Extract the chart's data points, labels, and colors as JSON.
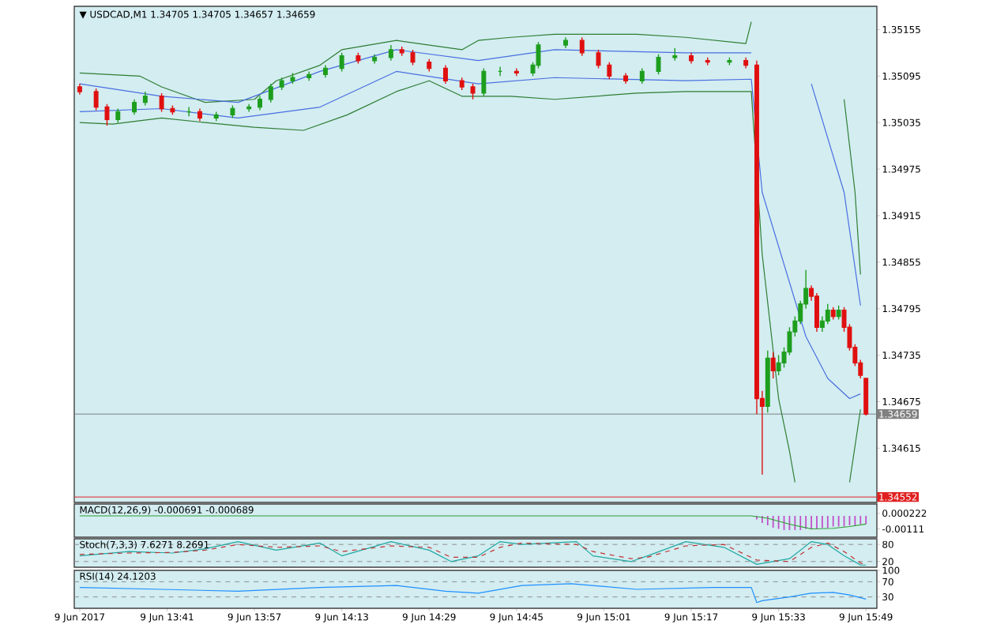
{
  "chart_data": [
    {
      "type": "candlestick",
      "title": "▼ USDCAD,M1  1.34705 1.34705 1.34657 1.34659",
      "x": [
        "2017-06-09T13:25",
        "2017-06-09T13:28",
        "2017-06-09T13:30",
        "2017-06-09T13:32",
        "2017-06-09T13:35",
        "2017-06-09T13:37",
        "2017-06-09T13:40",
        "2017-06-09T13:42",
        "2017-06-09T13:45",
        "2017-06-09T13:47",
        "2017-06-09T13:50",
        "2017-06-09T13:53",
        "2017-06-09T13:56",
        "2017-06-09T13:58",
        "2017-06-09T14:00",
        "2017-06-09T14:02",
        "2017-06-09T14:04",
        "2017-06-09T14:07",
        "2017-06-09T14:10",
        "2017-06-09T14:13",
        "2017-06-09T14:16",
        "2017-06-09T14:19",
        "2017-06-09T14:22",
        "2017-06-09T14:24",
        "2017-06-09T14:26",
        "2017-06-09T14:29",
        "2017-06-09T14:32",
        "2017-06-09T14:35",
        "2017-06-09T14:37",
        "2017-06-09T14:39",
        "2017-06-09T14:42",
        "2017-06-09T14:45",
        "2017-06-09T14:48",
        "2017-06-09T14:49",
        "2017-06-09T14:54",
        "2017-06-09T14:57",
        "2017-06-09T15:00",
        "2017-06-09T15:02",
        "2017-06-09T15:05",
        "2017-06-09T15:08",
        "2017-06-09T15:11",
        "2017-06-09T15:14",
        "2017-06-09T15:17",
        "2017-06-09T15:20",
        "2017-06-09T15:24",
        "2017-06-09T15:27",
        "2017-06-09T15:29",
        "2017-06-09T15:30",
        "2017-06-09T15:31",
        "2017-06-09T15:32",
        "2017-06-09T15:33",
        "2017-06-09T15:34",
        "2017-06-09T15:35",
        "2017-06-09T15:36",
        "2017-06-09T15:37",
        "2017-06-09T15:38",
        "2017-06-09T15:39",
        "2017-06-09T15:40",
        "2017-06-09T15:41",
        "2017-06-09T15:42",
        "2017-06-09T15:43",
        "2017-06-09T15:44",
        "2017-06-09T15:45",
        "2017-06-09T15:46",
        "2017-06-09T15:47",
        "2017-06-09T15:48",
        "2017-06-09T15:49"
      ],
      "ohlc": [
        [
          1.35081,
          1.35085,
          1.35071,
          1.35075
        ],
        [
          1.35075,
          1.35079,
          1.35051,
          1.35055
        ],
        [
          1.35055,
          1.35059,
          1.35031,
          1.35039
        ],
        [
          1.35039,
          1.35053,
          1.35035,
          1.35049
        ],
        [
          1.35049,
          1.35065,
          1.35045,
          1.35061
        ],
        [
          1.35061,
          1.35075,
          1.35057,
          1.35069
        ],
        [
          1.35069,
          1.35073,
          1.35049,
          1.35053
        ],
        [
          1.35053,
          1.35057,
          1.35045,
          1.35049
        ],
        [
          1.35049,
          1.35055,
          1.35043,
          1.35049
        ],
        [
          1.35049,
          1.35053,
          1.35037,
          1.35041
        ],
        [
          1.35041,
          1.35049,
          1.35037,
          1.35045
        ],
        [
          1.35045,
          1.35057,
          1.35041,
          1.35053
        ],
        [
          1.35053,
          1.35059,
          1.35049,
          1.35055
        ],
        [
          1.35055,
          1.35069,
          1.35051,
          1.35065
        ],
        [
          1.35065,
          1.35085,
          1.35061,
          1.35081
        ],
        [
          1.35081,
          1.35093,
          1.35077,
          1.35089
        ],
        [
          1.35089,
          1.35099,
          1.35085,
          1.35093
        ],
        [
          1.35093,
          1.35101,
          1.35089,
          1.35097
        ],
        [
          1.35097,
          1.35109,
          1.35093,
          1.35105
        ],
        [
          1.35105,
          1.35125,
          1.35101,
          1.35121
        ],
        [
          1.35121,
          1.35125,
          1.35111,
          1.35115
        ],
        [
          1.35115,
          1.35123,
          1.35111,
          1.35119
        ],
        [
          1.35119,
          1.35135,
          1.35115,
          1.35129
        ],
        [
          1.35129,
          1.35133,
          1.35121,
          1.35125
        ],
        [
          1.35125,
          1.35129,
          1.35109,
          1.35113
        ],
        [
          1.35113,
          1.35117,
          1.35101,
          1.35105
        ],
        [
          1.35105,
          1.35109,
          1.35085,
          1.35089
        ],
        [
          1.35089,
          1.35093,
          1.35077,
          1.35081
        ],
        [
          1.35081,
          1.35085,
          1.35065,
          1.35073
        ],
        [
          1.35073,
          1.35105,
          1.35069,
          1.35101
        ],
        [
          1.35101,
          1.35107,
          1.35095,
          1.35101
        ],
        [
          1.35101,
          1.35105,
          1.35095,
          1.35099
        ],
        [
          1.35099,
          1.35113,
          1.35095,
          1.35109
        ],
        [
          1.35109,
          1.35139,
          1.35105,
          1.35135
        ],
        [
          1.35135,
          1.35145,
          1.35131,
          1.35141
        ],
        [
          1.35141,
          1.35145,
          1.35121,
          1.35125
        ],
        [
          1.35125,
          1.35129,
          1.35105,
          1.35109
        ],
        [
          1.35109,
          1.35113,
          1.35091,
          1.35095
        ],
        [
          1.35095,
          1.35099,
          1.35085,
          1.35089
        ],
        [
          1.35089,
          1.35105,
          1.35085,
          1.35101
        ],
        [
          1.35101,
          1.35123,
          1.35097,
          1.35119
        ],
        [
          1.35119,
          1.35131,
          1.35115,
          1.35121
        ],
        [
          1.35121,
          1.35125,
          1.35111,
          1.35115
        ],
        [
          1.35115,
          1.35119,
          1.35109,
          1.35113
        ],
        [
          1.35113,
          1.35119,
          1.35109,
          1.35115
        ],
        [
          1.35115,
          1.35119,
          1.35105,
          1.35109
        ],
        [
          1.35109,
          1.35115,
          1.34659,
          1.34679
        ],
        [
          1.34679,
          1.34689,
          1.34581,
          1.34669
        ],
        [
          1.34669,
          1.34741,
          1.34661,
          1.34731
        ],
        [
          1.34731,
          1.34739,
          1.34705,
          1.34715
        ],
        [
          1.34715,
          1.34735,
          1.34709,
          1.34725
        ],
        [
          1.34725,
          1.34745,
          1.34719,
          1.34739
        ],
        [
          1.34739,
          1.34771,
          1.34735,
          1.34765
        ],
        [
          1.34765,
          1.34785,
          1.34759,
          1.34779
        ],
        [
          1.34779,
          1.34805,
          1.34775,
          1.34801
        ],
        [
          1.34801,
          1.34845,
          1.34795,
          1.34821
        ],
        [
          1.34821,
          1.34825,
          1.34805,
          1.34811
        ],
        [
          1.34811,
          1.34815,
          1.34765,
          1.34771
        ],
        [
          1.34771,
          1.34785,
          1.34765,
          1.34779
        ],
        [
          1.34779,
          1.34801,
          1.34775,
          1.34793
        ],
        [
          1.34793,
          1.34797,
          1.34781,
          1.34785
        ],
        [
          1.34785,
          1.34799,
          1.34781,
          1.34793
        ],
        [
          1.34793,
          1.34797,
          1.34765,
          1.34771
        ],
        [
          1.34771,
          1.34775,
          1.34741,
          1.34745
        ],
        [
          1.34745,
          1.34749,
          1.34721,
          1.34725
        ],
        [
          1.34725,
          1.34729,
          1.34705,
          1.34709
        ],
        [
          1.34705,
          1.34705,
          1.34657,
          1.34659
        ]
      ],
      "series": [
        {
          "type": "line",
          "color": "#2e7d32",
          "x": [
            "2017-06-09T13:25",
            "2017-06-09T13:36",
            "2017-06-09T13:40",
            "2017-06-09T13:48",
            "2017-06-09T13:57",
            "2017-06-09T14:01",
            "2017-06-09T14:09",
            "2017-06-09T14:13",
            "2017-06-09T14:23",
            "2017-06-09T14:35",
            "2017-06-09T14:38",
            "2017-06-09T14:44",
            "2017-06-09T14:52",
            "2017-06-09T15:07",
            "2017-06-09T15:16",
            "2017-06-09T15:27",
            "2017-06-09T15:28",
            "2017-06-09T15:29",
            "2017-06-09T15:42",
            "2017-06-09T15:45",
            "2017-06-09T15:47",
            "2017-06-09T15:48"
          ],
          "values": [
            1.35099,
            1.35095,
            1.35081,
            1.35061,
            1.35065,
            1.35089,
            1.35109,
            1.35129,
            1.35141,
            1.35129,
            1.35141,
            1.35145,
            1.35149,
            1.35149,
            1.35145,
            1.35137,
            1.35165,
            null,
            null,
            1.35065,
            1.34945,
            1.34839
          ]
        },
        {
          "type": "line",
          "color": "#2e7d32",
          "x": [
            "2017-06-09T13:25",
            "2017-06-09T13:31",
            "2017-06-09T13:40",
            "2017-06-09T13:48",
            "2017-06-09T13:57",
            "2017-06-09T14:06",
            "2017-06-09T14:14",
            "2017-06-09T14:23",
            "2017-06-09T14:29",
            "2017-06-09T14:35",
            "2017-06-09T14:44",
            "2017-06-09T14:52",
            "2017-06-09T15:07",
            "2017-06-09T15:16",
            "2017-06-09T15:28",
            "2017-06-09T15:30",
            "2017-06-09T15:33",
            "2017-06-09T15:35",
            "2017-06-09T15:36",
            "2017-06-09T15:37",
            "2017-06-09T15:46",
            "2017-06-09T15:48"
          ],
          "values": [
            1.35035,
            1.35033,
            1.35041,
            1.35035,
            1.35029,
            1.35025,
            1.35045,
            1.35075,
            1.35089,
            1.35069,
            1.35069,
            1.35065,
            1.35073,
            1.35075,
            1.35075,
            1.34865,
            1.34679,
            1.34611,
            1.34571,
            null,
            1.34571,
            1.34665
          ]
        },
        {
          "type": "line",
          "color": "#4a6ee0",
          "x": [
            "2017-06-09T13:25",
            "2017-06-09T13:40",
            "2017-06-09T13:54",
            "2017-06-09T14:09",
            "2017-06-09T14:23",
            "2017-06-09T14:38",
            "2017-06-09T14:52",
            "2017-06-09T15:16",
            "2017-06-09T15:28",
            "2017-06-09T15:29",
            "2017-06-09T15:30",
            "2017-06-09T15:34",
            "2017-06-09T15:39",
            "2017-06-09T15:45",
            "2017-06-09T15:48"
          ],
          "values": [
            1.35085,
            1.35069,
            1.35061,
            1.35101,
            1.35129,
            1.35115,
            1.35129,
            1.35125,
            1.35125,
            null,
            null,
            null,
            1.35085,
            1.34945,
            1.34799
          ]
        },
        {
          "type": "line",
          "color": "#4a6ee0",
          "x": [
            "2017-06-09T13:25",
            "2017-06-09T13:40",
            "2017-06-09T13:54",
            "2017-06-09T14:09",
            "2017-06-09T14:23",
            "2017-06-09T14:38",
            "2017-06-09T14:52",
            "2017-06-09T15:16",
            "2017-06-09T15:28",
            "2017-06-09T15:30",
            "2017-06-09T15:38",
            "2017-06-09T15:42",
            "2017-06-09T15:46",
            "2017-06-09T15:48"
          ],
          "values": [
            1.35049,
            1.35053,
            1.35041,
            1.35055,
            1.35101,
            1.35085,
            1.35093,
            1.35089,
            1.35091,
            1.34945,
            1.34759,
            1.34705,
            1.34679,
            1.34685
          ]
        }
      ],
      "xlim": [
        "2017-06-09T13:24",
        "2017-06-09T15:51"
      ],
      "ylim": [
        1.34545,
        1.35185
      ],
      "yticks": [
        1.34615,
        1.34675,
        1.34735,
        1.34795,
        1.34855,
        1.34915,
        1.34975,
        1.35035,
        1.35095,
        1.35155
      ],
      "tick_labels": "y",
      "ref_lines": [
        {
          "axis": "y",
          "value": 1.34659,
          "label": "1.34659",
          "color": "#808080"
        },
        {
          "axis": "y",
          "value": 1.34552,
          "label": "1.34552",
          "color": "#e02020"
        }
      ]
    },
    {
      "type": "bar",
      "title": "MACD(12,26,9) -0.000691 -0.000689",
      "series": [
        {
          "type": "bar",
          "color": "#c050c8",
          "x": [
            "2017-06-09T15:29",
            "2017-06-09T15:30",
            "2017-06-09T15:31",
            "2017-06-09T15:32",
            "2017-06-09T15:33",
            "2017-06-09T15:34",
            "2017-06-09T15:35",
            "2017-06-09T15:36",
            "2017-06-09T15:37",
            "2017-06-09T15:38",
            "2017-06-09T15:39",
            "2017-06-09T15:40",
            "2017-06-09T15:41",
            "2017-06-09T15:42",
            "2017-06-09T15:43",
            "2017-06-09T15:44",
            "2017-06-09T15:45",
            "2017-06-09T15:46",
            "2017-06-09T15:47",
            "2017-06-09T15:48",
            "2017-06-09T15:49"
          ],
          "values": [
            -0.0003,
            -0.0006,
            -0.0008,
            -0.001,
            -0.0011,
            -0.0012,
            -0.0012,
            -0.0012,
            -0.0012,
            -0.0011,
            -0.0011,
            -0.0011,
            -0.001,
            -0.001,
            -0.0009,
            -0.0009,
            -0.0009,
            -0.0008,
            -0.0008,
            -0.0007,
            -0.000691
          ]
        },
        {
          "type": "line",
          "color": "#2e9d32",
          "x": [
            "2017-06-09T13:25",
            "2017-06-09T14:25",
            "2017-06-09T15:28",
            "2017-06-09T15:31",
            "2017-06-09T15:35",
            "2017-06-09T15:39",
            "2017-06-09T15:43",
            "2017-06-09T15:46",
            "2017-06-09T15:49"
          ],
          "values": [
            0,
            0,
            0,
            -0.0002,
            -0.0007,
            -0.0011,
            -0.00105,
            -0.0009,
            -0.000689
          ]
        }
      ],
      "xlim": [
        "2017-06-09T13:24",
        "2017-06-09T15:51"
      ],
      "ylim": [
        -0.0018,
        0.001
      ],
      "yticks": [
        -0.00111,
        0.000222
      ],
      "tick_labels": "y"
    },
    {
      "type": "line",
      "title": "Stoch(7,3,3) 7.6271 8.2691",
      "series": [
        {
          "color": "#20a8a0",
          "x": [
            "2017-06-09T13:25",
            "2017-06-09T13:34",
            "2017-06-09T13:42",
            "2017-06-09T13:48",
            "2017-06-09T13:54",
            "2017-06-09T14:01",
            "2017-06-09T14:09",
            "2017-06-09T14:13",
            "2017-06-09T14:22",
            "2017-06-09T14:29",
            "2017-06-09T14:33",
            "2017-06-09T14:38",
            "2017-06-09T14:42",
            "2017-06-09T14:46",
            "2017-06-09T14:56",
            "2017-06-09T14:59",
            "2017-06-09T15:06",
            "2017-06-09T15:09",
            "2017-06-09T15:16",
            "2017-06-09T15:23",
            "2017-06-09T15:29",
            "2017-06-09T15:35",
            "2017-06-09T15:39",
            "2017-06-09T15:42",
            "2017-06-09T15:45",
            "2017-06-09T15:48",
            "2017-06-09T15:49"
          ],
          "values": [
            40,
            55,
            50,
            65,
            90,
            60,
            85,
            40,
            90,
            60,
            20,
            40,
            90,
            80,
            90,
            40,
            20,
            40,
            90,
            70,
            10,
            30,
            90,
            80,
            40,
            8,
            7.6271
          ]
        },
        {
          "color": "#c03030",
          "line_style": "dashed",
          "x": [
            "2017-06-09T13:25",
            "2017-06-09T13:34",
            "2017-06-09T13:42",
            "2017-06-09T13:48",
            "2017-06-09T13:54",
            "2017-06-09T14:01",
            "2017-06-09T14:09",
            "2017-06-09T14:13",
            "2017-06-09T14:22",
            "2017-06-09T14:29",
            "2017-06-09T14:33",
            "2017-06-09T14:38",
            "2017-06-09T14:42",
            "2017-06-09T14:46",
            "2017-06-09T14:56",
            "2017-06-09T14:59",
            "2017-06-09T15:06",
            "2017-06-09T15:09",
            "2017-06-09T15:16",
            "2017-06-09T15:23",
            "2017-06-09T15:29",
            "2017-06-09T15:35",
            "2017-06-09T15:39",
            "2017-06-09T15:42",
            "2017-06-09T15:45",
            "2017-06-09T15:48",
            "2017-06-09T15:49"
          ],
          "values": [
            45,
            50,
            52,
            60,
            80,
            70,
            75,
            55,
            75,
            70,
            35,
            35,
            70,
            85,
            80,
            55,
            30,
            35,
            75,
            80,
            25,
            20,
            70,
            85,
            55,
            15,
            8.2691
          ]
        }
      ],
      "xlim": [
        "2017-06-09T13:24",
        "2017-06-09T15:51"
      ],
      "ylim": [
        0,
        100
      ],
      "yticks": [
        20,
        80
      ],
      "tick_labels": "y",
      "ref_lines": [
        {
          "axis": "y",
          "value": 20,
          "color": "#909090",
          "line_style": "dashed"
        },
        {
          "axis": "y",
          "value": 80,
          "color": "#909090",
          "line_style": "dashed"
        }
      ]
    },
    {
      "type": "line",
      "title": "RSI(14) 24.1203",
      "series": [
        {
          "color": "#1e90ff",
          "x": [
            "2017-06-09T13:25",
            "2017-06-09T13:40",
            "2017-06-09T13:54",
            "2017-06-09T14:09",
            "2017-06-09T14:23",
            "2017-06-09T14:32",
            "2017-06-09T14:38",
            "2017-06-09T14:46",
            "2017-06-09T14:55",
            "2017-06-09T15:07",
            "2017-06-09T15:21",
            "2017-06-09T15:28",
            "2017-06-09T15:29",
            "2017-06-09T15:30",
            "2017-06-09T15:35",
            "2017-06-09T15:39",
            "2017-06-09T15:43",
            "2017-06-09T15:46",
            "2017-06-09T15:49"
          ],
          "values": [
            55,
            50,
            45,
            55,
            60,
            45,
            40,
            60,
            65,
            50,
            55,
            55,
            15,
            20,
            30,
            40,
            42,
            35,
            24.1203
          ]
        }
      ],
      "xlim": [
        "2017-06-09T13:24",
        "2017-06-09T15:51"
      ],
      "ylim": [
        0,
        100
      ],
      "xticks": [
        {
          "value": "2017-06-09T13:25",
          "label": "9 Jun 2017"
        },
        {
          "value": "2017-06-09T13:41",
          "label": "9 Jun 13:41"
        },
        {
          "value": "2017-06-09T13:57",
          "label": "9 Jun 13:57"
        },
        {
          "value": "2017-06-09T14:13",
          "label": "9 Jun 14:13"
        },
        {
          "value": "2017-06-09T14:29",
          "label": "9 Jun 14:29"
        },
        {
          "value": "2017-06-09T14:45",
          "label": "9 Jun 14:45"
        },
        {
          "value": "2017-06-09T15:01",
          "label": "9 Jun 15:01"
        },
        {
          "value": "2017-06-09T15:17",
          "label": "9 Jun 15:17"
        },
        {
          "value": "2017-06-09T15:33",
          "label": "9 Jun 15:33"
        },
        {
          "value": "2017-06-09T15:49",
          "label": "9 Jun 15:49"
        }
      ],
      "yticks": [
        30,
        70,
        100
      ],
      "ref_lines": [
        {
          "axis": "y",
          "value": 30,
          "color": "#909090",
          "line_style": "dashed"
        },
        {
          "axis": "y",
          "value": 70,
          "color": "#909090",
          "line_style": "dashed"
        }
      ]
    }
  ]
}
